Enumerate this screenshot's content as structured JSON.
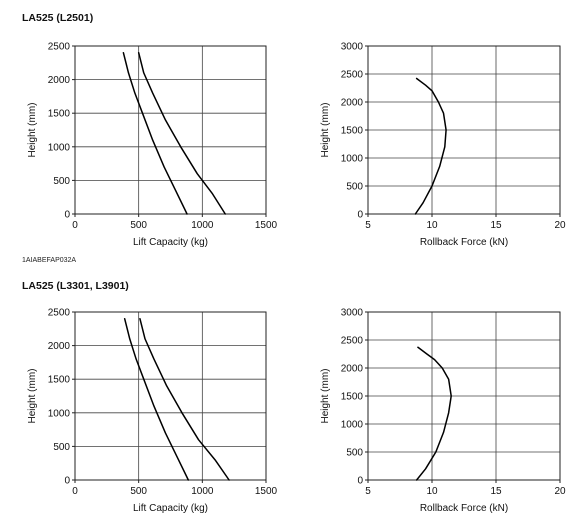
{
  "sections": [
    {
      "title": "LA525 (L2501)",
      "figure_code": "1AIABEFAP032A"
    },
    {
      "title": "LA525 (L3301, L3901)"
    }
  ],
  "chart_data": [
    {
      "type": "line",
      "xlabel": "Lift Capacity (kg)",
      "ylabel": "Height (mm)",
      "xlim": [
        0,
        1500
      ],
      "ylim": [
        0,
        2500
      ],
      "xticks": [
        0,
        500,
        1000,
        1500
      ],
      "yticks": [
        0,
        500,
        1000,
        1500,
        2000,
        2500
      ],
      "grid": true,
      "series": [
        {
          "x": [
            380,
            420,
            470,
            530,
            610,
            700,
            790,
            880
          ],
          "y": [
            2400,
            2100,
            1800,
            1500,
            1100,
            700,
            350,
            0
          ]
        },
        {
          "x": [
            500,
            540,
            610,
            710,
            830,
            960,
            1080,
            1180
          ],
          "y": [
            2400,
            2100,
            1800,
            1400,
            1000,
            600,
            300,
            0
          ]
        }
      ]
    },
    {
      "type": "line",
      "xlabel": "Rollback Force (kN)",
      "ylabel": "Height (mm)",
      "xlim": [
        5,
        20
      ],
      "ylim": [
        0,
        3000
      ],
      "xticks": [
        5,
        10,
        15,
        20
      ],
      "yticks": [
        0,
        500,
        1000,
        1500,
        2000,
        2500,
        3000
      ],
      "grid": true,
      "series": [
        {
          "x": [
            8.7,
            9.3,
            10.0,
            10.6,
            11.0,
            11.1,
            10.9,
            10.5,
            10.0,
            9.5,
            8.8
          ],
          "y": [
            0,
            200,
            500,
            850,
            1200,
            1500,
            1800,
            2000,
            2200,
            2300,
            2420
          ]
        }
      ]
    },
    {
      "type": "line",
      "xlabel": "Lift Capacity (kg)",
      "ylabel": "Height (mm)",
      "xlim": [
        0,
        1500
      ],
      "ylim": [
        0,
        2500
      ],
      "xticks": [
        0,
        500,
        1000,
        1500
      ],
      "yticks": [
        0,
        500,
        1000,
        1500,
        2000,
        2500
      ],
      "grid": true,
      "series": [
        {
          "x": [
            390,
            430,
            480,
            540,
            620,
            710,
            800,
            890
          ],
          "y": [
            2400,
            2100,
            1800,
            1500,
            1100,
            700,
            350,
            0
          ]
        },
        {
          "x": [
            510,
            550,
            620,
            720,
            840,
            970,
            1100,
            1210
          ],
          "y": [
            2400,
            2100,
            1800,
            1400,
            1000,
            600,
            300,
            0
          ]
        }
      ]
    },
    {
      "type": "line",
      "xlabel": "Rollback Force (kN)",
      "ylabel": "Height (mm)",
      "xlim": [
        5,
        20
      ],
      "ylim": [
        0,
        3000
      ],
      "xticks": [
        5,
        10,
        15,
        20
      ],
      "yticks": [
        0,
        500,
        1000,
        1500,
        2000,
        2500,
        3000
      ],
      "grid": true,
      "series": [
        {
          "x": [
            8.8,
            9.5,
            10.3,
            10.9,
            11.3,
            11.5,
            11.3,
            10.8,
            10.2,
            9.6,
            8.9
          ],
          "y": [
            0,
            200,
            500,
            850,
            1200,
            1500,
            1800,
            2000,
            2150,
            2250,
            2370
          ]
        }
      ]
    }
  ]
}
